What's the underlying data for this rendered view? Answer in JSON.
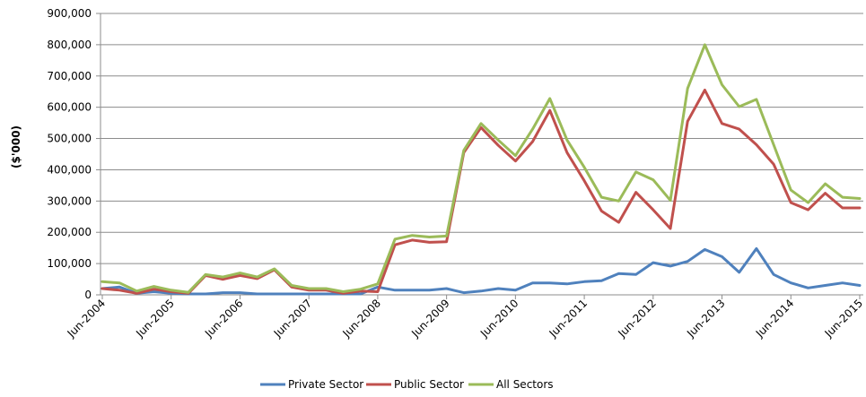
{
  "chart_data": {
    "type": "line",
    "title": "",
    "xlabel": "",
    "ylabel": "($'000)",
    "ylim": [
      0,
      900000
    ],
    "yticks": [
      0,
      100000,
      200000,
      300000,
      400000,
      500000,
      600000,
      700000,
      800000,
      900000
    ],
    "ytick_labels": [
      "0",
      "100,000",
      "200,000",
      "300,000",
      "400,000",
      "500,000",
      "600,000",
      "700,000",
      "800,000",
      "900,000"
    ],
    "xtick_labels": [
      "Jun-2004",
      "Jun-2005",
      "Jun-2006",
      "Jun-2007",
      "Jun-2008",
      "Jun-2009",
      "Jun-2010",
      "Jun-2011",
      "Jun-2012",
      "Jun-2013",
      "Jun-2014",
      "Jun-2015"
    ],
    "grid": "horizontal",
    "legend_position": "bottom",
    "x": [
      "Jun-2004",
      "Sep-2004",
      "Dec-2004",
      "Mar-2005",
      "Jun-2005",
      "Sep-2005",
      "Dec-2005",
      "Mar-2006",
      "Jun-2006",
      "Sep-2006",
      "Dec-2006",
      "Mar-2007",
      "Jun-2007",
      "Sep-2007",
      "Dec-2007",
      "Mar-2008",
      "Jun-2008",
      "Sep-2008",
      "Dec-2008",
      "Mar-2009",
      "Jun-2009",
      "Sep-2009",
      "Dec-2009",
      "Mar-2010",
      "Jun-2010",
      "Sep-2010",
      "Dec-2010",
      "Mar-2011",
      "Jun-2011",
      "Sep-2011",
      "Dec-2011",
      "Mar-2012",
      "Jun-2012",
      "Sep-2012",
      "Dec-2012",
      "Mar-2013",
      "Jun-2013",
      "Sep-2013",
      "Dec-2013",
      "Mar-2014",
      "Jun-2014",
      "Sep-2014",
      "Dec-2014",
      "Mar-2015",
      "Jun-2015"
    ],
    "series": [
      {
        "name": "Private Sector",
        "color": "#4F81BD",
        "values": [
          20000,
          25000,
          5000,
          10000,
          5000,
          3000,
          3000,
          7000,
          7000,
          3000,
          3000,
          3000,
          3000,
          3000,
          3000,
          3000,
          25000,
          15000,
          15000,
          15000,
          20000,
          7000,
          12000,
          20000,
          15000,
          38000,
          38000,
          35000,
          42000,
          45000,
          68000,
          65000,
          103000,
          92000,
          107000,
          145000,
          122000,
          72000,
          148000,
          65000,
          38000,
          22000,
          30000,
          38000,
          30000
        ]
      },
      {
        "name": "Public Sector",
        "color": "#C0504D",
        "values": [
          20000,
          15000,
          5000,
          18000,
          10000,
          5000,
          62000,
          50000,
          62000,
          52000,
          80000,
          25000,
          15000,
          15000,
          5000,
          12000,
          10000,
          160000,
          175000,
          168000,
          170000,
          455000,
          535000,
          478000,
          428000,
          490000,
          590000,
          455000,
          365000,
          268000,
          232000,
          328000,
          272000,
          212000,
          555000,
          655000,
          548000,
          530000,
          480000,
          418000,
          295000,
          272000,
          325000,
          278000,
          278000
        ]
      },
      {
        "name": "All Sectors",
        "color": "#9BBB59",
        "values": [
          42000,
          38000,
          12000,
          27000,
          15000,
          8000,
          65000,
          57000,
          70000,
          57000,
          83000,
          30000,
          20000,
          20000,
          10000,
          18000,
          35000,
          178000,
          190000,
          185000,
          188000,
          462000,
          548000,
          495000,
          445000,
          530000,
          628000,
          495000,
          408000,
          312000,
          300000,
          393000,
          368000,
          302000,
          660000,
          800000,
          672000,
          602000,
          625000,
          480000,
          335000,
          295000,
          355000,
          312000,
          308000
        ]
      }
    ]
  }
}
